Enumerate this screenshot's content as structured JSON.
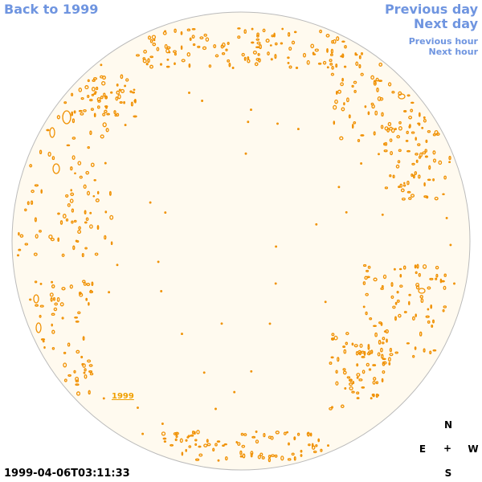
{
  "nav": {
    "back": "Back to 1999",
    "previous_day": "Previous day",
    "next_day": "Next day",
    "previous_hour": "Previous hour",
    "next_hour": "Next hour"
  },
  "disk": {
    "fill_color": "#fffaef",
    "border_color": "#bbbbbb",
    "contour_color": "#f09000",
    "year_link": "1999"
  },
  "timestamp": "1999-04-06T03:11:33",
  "compass": {
    "north": "N",
    "east": "E",
    "center": "+",
    "west": "W",
    "south": "S"
  }
}
